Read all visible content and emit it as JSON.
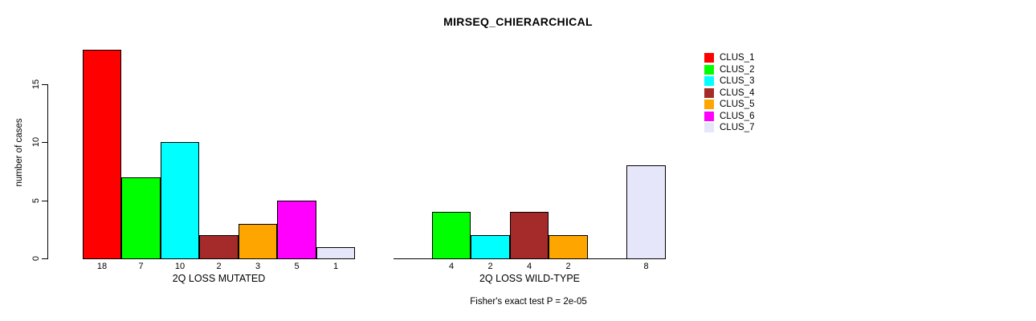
{
  "title": "MIRSEQ_CHIERARCHICAL",
  "subtitle": "Fisher's exact test P = 2e-05",
  "ylabel": "number of cases",
  "legend": {
    "items": [
      {
        "label": "CLUS_1",
        "color": "#FF0000"
      },
      {
        "label": "CLUS_2",
        "color": "#00FF00"
      },
      {
        "label": "CLUS_3",
        "color": "#00FFFF"
      },
      {
        "label": "CLUS_4",
        "color": "#A52A2A"
      },
      {
        "label": "CLUS_5",
        "color": "#FFA500"
      },
      {
        "label": "CLUS_6",
        "color": "#FF00FF"
      },
      {
        "label": "CLUS_7",
        "color": "#E6E6FA"
      }
    ]
  },
  "chart_data": {
    "type": "bar",
    "title": "MIRSEQ_CHIERARCHICAL",
    "annotation": "Fisher's exact test P = 2e-05",
    "ylabel": "number of cases",
    "xlabel": "",
    "ylim": [
      0,
      18
    ],
    "yticks": [
      0,
      5,
      10,
      15
    ],
    "grid": false,
    "legend_position": "right",
    "bar_colors_note": "R colors: red, green, cyan, brown, orange, magenta, lavender",
    "groups": [
      "2Q LOSS MUTATED",
      "2Q LOSS WILD-TYPE"
    ],
    "series": [
      {
        "name": "CLUS_1",
        "color": "#FF0000",
        "values": [
          18,
          0
        ]
      },
      {
        "name": "CLUS_2",
        "color": "#00FF00",
        "values": [
          7,
          4
        ]
      },
      {
        "name": "CLUS_3",
        "color": "#00FFFF",
        "values": [
          10,
          2
        ]
      },
      {
        "name": "CLUS_4",
        "color": "#A52A2A",
        "values": [
          2,
          4
        ]
      },
      {
        "name": "CLUS_5",
        "color": "#FFA500",
        "values": [
          3,
          2
        ]
      },
      {
        "name": "CLUS_6",
        "color": "#FF00FF",
        "values": [
          5,
          0
        ]
      },
      {
        "name": "CLUS_7",
        "color": "#E6E6FA",
        "values": [
          1,
          8
        ]
      }
    ],
    "value_labels": {
      "shown": true,
      "hidden_for_zero": true
    }
  }
}
